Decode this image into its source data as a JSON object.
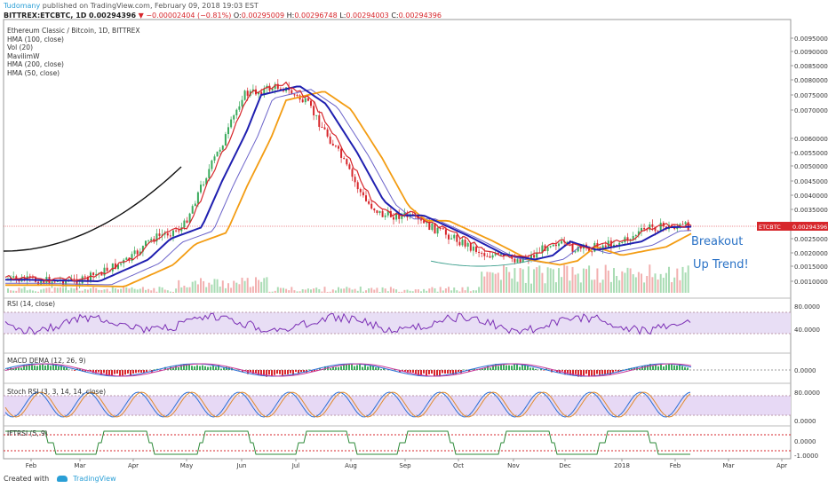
{
  "header": {
    "author": "Tudomany",
    "published": "published on TradingView.com, February 09, 2018 19:03 EST",
    "symbol": "BITTREX:ETCBTC, 1D",
    "price": "0.00294396",
    "change": "▼ −0.00002404 (−0.81%)",
    "o_label": "O:",
    "o": "0.00295009",
    "h_label": "H:",
    "h": "0.00296748",
    "l_label": "L:",
    "l": "0.00294003",
    "c_label": "C:",
    "c": "0.00294396"
  },
  "legend": [
    "Ethereum Classic / Bitcoin, 1D, BITTREX",
    "HMA (100, close)",
    "Vol (20)",
    "MavilimW",
    "HMA (200, close)",
    "HMA (50, close)"
  ],
  "panes": {
    "rsi": "RSI (14, close)",
    "macd": "MACD DEMA (12, 26, 9)",
    "stoch": "Stoch RSI (3, 3, 14, 14, close)",
    "iftrsi": "IFTRSI (5, 9)"
  },
  "annotations": {
    "breakout": "Breakout",
    "uptrend": "Up Trend!"
  },
  "footer": {
    "created": "Created with",
    "brand": "TradingView"
  },
  "colors": {
    "up": "#3aaa5c",
    "down": "#d7262b",
    "blue": "#1f1fb0",
    "orange": "#f39c12",
    "purple": "#6b63c9",
    "rsi": "#7b2fb5",
    "green_ind": "#2e8b3a"
  },
  "chart_data": {
    "type": "candlestick",
    "price_axis_ticks": [
      "0.00950000",
      "0.00900000",
      "0.00850000",
      "0.00800000",
      "0.00750000",
      "0.00700000",
      "0.00600000",
      "0.00550000",
      "0.00500000",
      "0.00450000",
      "0.00400000",
      "0.00350000",
      "0.00300000",
      "0.00250000",
      "0.00200000",
      "0.00150000",
      "0.00100000"
    ],
    "last_price_label": "ETCBTC",
    "last_price": "0.00294396",
    "time_axis": [
      "Feb",
      "Mar",
      "Apr",
      "May",
      "Jun",
      "Jul",
      "Aug",
      "Sep",
      "Oct",
      "Nov",
      "Dec",
      "2018",
      "Feb",
      "Mar",
      "Apr"
    ],
    "close_path": [
      [
        "Feb",
        0.00105
      ],
      [
        "Mar",
        0.001
      ],
      [
        "Apr",
        0.00175
      ],
      [
        "mid-Apr",
        0.0025
      ],
      [
        "May",
        0.0029
      ],
      [
        "mid-May",
        0.0045
      ],
      [
        "Jun",
        0.0062
      ],
      [
        "mid-Jun",
        0.0075
      ],
      [
        "Jul",
        0.0078
      ],
      [
        "mid-Jul",
        0.0072
      ],
      [
        "Aug",
        0.0055
      ],
      [
        "mid-Aug",
        0.0038
      ],
      [
        "Sep",
        0.0033
      ],
      [
        "mid-Sep",
        0.0033
      ],
      [
        "Oct",
        0.0026
      ],
      [
        "mid-Oct",
        0.00195
      ],
      [
        "Nov",
        0.00175
      ],
      [
        "mid-Nov",
        0.0019
      ],
      [
        "Dec",
        0.0024
      ],
      [
        "mid-Dec",
        0.0021
      ],
      [
        "2018",
        0.0024
      ],
      [
        "mid-Jan",
        0.0029
      ],
      [
        "Feb",
        0.00294
      ]
    ],
    "rsi_ticks": [
      "80.0000",
      "40.0000"
    ],
    "macd_ticks": [
      "0.0000"
    ],
    "stoch_ticks": [
      "80.0000",
      "0.0000"
    ],
    "iftrsi_ticks": [
      "0.0000",
      "-1.0000"
    ]
  }
}
